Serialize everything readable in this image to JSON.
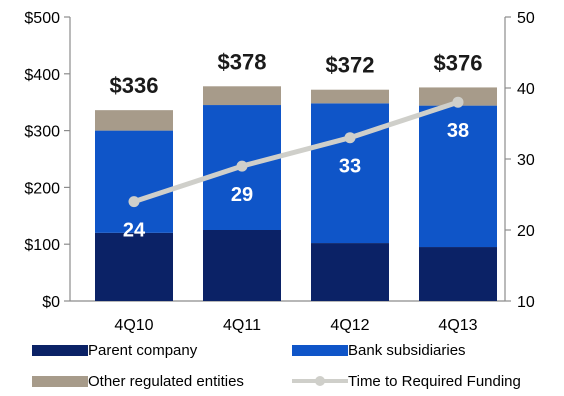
{
  "chart_data": {
    "type": "bar",
    "categories": [
      "4Q10",
      "4Q11",
      "4Q12",
      "4Q13"
    ],
    "series": [
      {
        "name": "Parent company",
        "values": [
          120,
          125,
          102,
          95
        ],
        "color": "#0b2266"
      },
      {
        "name": "Bank subsidiaries",
        "values": [
          180,
          220,
          246,
          249
        ],
        "color": "#0f55c8"
      },
      {
        "name": "Other regulated entities",
        "values": [
          36,
          33,
          24,
          32
        ],
        "color": "#a79b8a"
      }
    ],
    "totals": [
      "$336",
      "$378",
      "$372",
      "$376"
    ],
    "line_series": {
      "name": "Time to Required Funding",
      "values": [
        24,
        29,
        33,
        38
      ],
      "labels": [
        "24",
        "29",
        "33",
        "38"
      ],
      "color": "#cfcfca"
    },
    "left_axis": {
      "ylim": [
        0,
        500
      ],
      "ticks": [
        "$0",
        "$100",
        "$200",
        "$300",
        "$400",
        "$500"
      ]
    },
    "right_axis": {
      "ylim": [
        10,
        50
      ],
      "ticks": [
        "10",
        "20",
        "30",
        "40",
        "50"
      ]
    },
    "legend_position": "bottom",
    "grid": false
  }
}
